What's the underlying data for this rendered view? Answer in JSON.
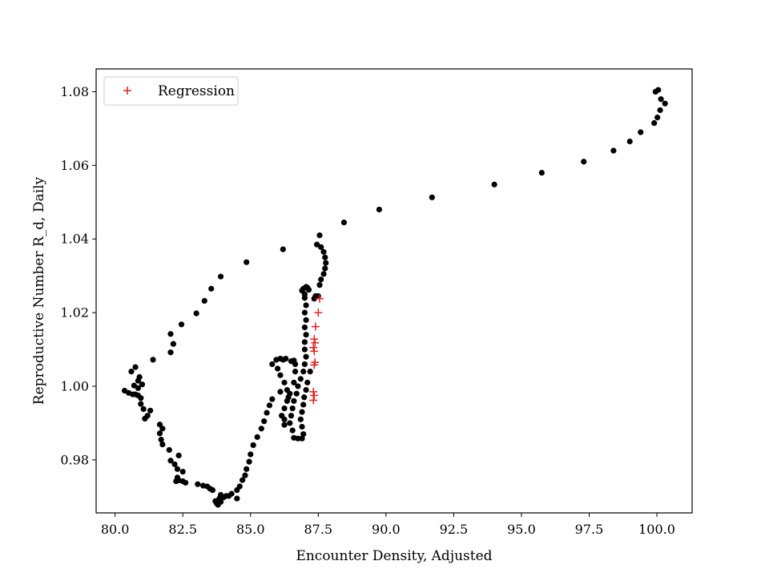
{
  "chart_data": {
    "type": "scatter",
    "xlabel": "Encounter Density, Adjusted",
    "ylabel": "Reproductive Number R_d, Daily",
    "xlim": [
      79.3,
      101.3
    ],
    "ylim": [
      0.9656,
      1.0862
    ],
    "xticks": [
      80.0,
      82.5,
      85.0,
      87.5,
      90.0,
      92.5,
      95.0,
      97.5,
      100.0
    ],
    "xtick_labels": [
      "80.0",
      "82.5",
      "85.0",
      "87.5",
      "90.0",
      "92.5",
      "95.0",
      "97.5",
      "100.0"
    ],
    "yticks": [
      0.98,
      1.0,
      1.02,
      1.04,
      1.06,
      1.08
    ],
    "ytick_labels": [
      "0.98",
      "1.00",
      "1.02",
      "1.04",
      "1.06",
      "1.08"
    ],
    "grid": false,
    "legend_position": "top-left",
    "series": [
      {
        "name": "",
        "marker": "dot",
        "color": "#000000",
        "points": [
          [
            99.95,
            1.08
          ],
          [
            100.05,
            1.0805
          ],
          [
            100.15,
            1.078
          ],
          [
            100.3,
            1.0768
          ],
          [
            100.12,
            1.075
          ],
          [
            100.02,
            1.073
          ],
          [
            99.9,
            1.0715
          ],
          [
            99.4,
            1.069
          ],
          [
            99.0,
            1.0665
          ],
          [
            98.4,
            1.064
          ],
          [
            97.3,
            1.061
          ],
          [
            95.75,
            1.058
          ],
          [
            94.0,
            1.0548
          ],
          [
            91.7,
            1.0513
          ],
          [
            89.75,
            1.048
          ],
          [
            88.45,
            1.0445
          ],
          [
            87.55,
            1.041
          ],
          [
            87.45,
            1.0385
          ],
          [
            87.6,
            1.0378
          ],
          [
            87.7,
            1.0365
          ],
          [
            87.75,
            1.035
          ],
          [
            87.78,
            1.0335
          ],
          [
            87.75,
            1.032
          ],
          [
            87.7,
            1.0305
          ],
          [
            87.6,
            1.029
          ],
          [
            87.55,
            1.0275
          ],
          [
            87.5,
            1.0245
          ],
          [
            87.4,
            1.0245
          ],
          [
            87.35,
            1.0238
          ],
          [
            87.05,
            1.027
          ],
          [
            86.95,
            1.0265
          ],
          [
            86.9,
            1.026
          ],
          [
            87.0,
            1.025
          ],
          [
            87.1,
            1.0268
          ],
          [
            87.15,
            1.0262
          ],
          [
            87.0,
            1.024
          ],
          [
            87.05,
            1.022
          ],
          [
            87.0,
            1.02
          ],
          [
            87.05,
            1.018
          ],
          [
            87.0,
            1.016
          ],
          [
            87.05,
            1.014
          ],
          [
            87.0,
            1.012
          ],
          [
            87.0,
            1.01
          ],
          [
            87.05,
            1.008
          ],
          [
            87.0,
            1.006
          ],
          [
            86.95,
            1.004
          ],
          [
            86.85,
            1.002
          ],
          [
            86.75,
            1.0
          ],
          [
            86.7,
            0.998
          ],
          [
            86.6,
            0.996
          ],
          [
            86.55,
            0.994
          ],
          [
            86.5,
            0.992
          ],
          [
            86.45,
            0.99
          ],
          [
            86.55,
            0.988
          ],
          [
            86.6,
            0.986
          ],
          [
            86.75,
            0.9858
          ],
          [
            86.9,
            0.9858
          ],
          [
            86.95,
            0.987
          ],
          [
            86.9,
            0.989
          ],
          [
            86.85,
            0.991
          ],
          [
            86.9,
            0.993
          ],
          [
            86.95,
            0.995
          ],
          [
            86.98,
            0.997
          ],
          [
            87.05,
            0.999
          ],
          [
            87.1,
            1.001
          ],
          [
            87.2,
            1.004
          ],
          [
            86.6,
            1.007
          ],
          [
            86.5,
            1.0068
          ],
          [
            86.3,
            1.0075
          ],
          [
            86.2,
            1.0072
          ],
          [
            86.1,
            1.0075
          ],
          [
            85.95,
            1.0072
          ],
          [
            85.8,
            1.006
          ],
          [
            86.0,
            1.0048
          ],
          [
            86.1,
            1.003
          ],
          [
            86.25,
            1.001
          ],
          [
            86.35,
            0.999
          ],
          [
            86.4,
            0.997
          ],
          [
            86.65,
            1.006
          ],
          [
            86.65,
            1.004
          ],
          [
            86.6,
            1.001
          ],
          [
            86.45,
            0.998
          ],
          [
            86.35,
            0.996
          ],
          [
            86.25,
            0.994
          ],
          [
            86.15,
            0.992
          ],
          [
            86.25,
            0.991
          ],
          [
            86.25,
            0.9895
          ],
          [
            86.1,
            0.9985
          ],
          [
            85.8,
            0.9965
          ],
          [
            85.7,
            0.9948
          ],
          [
            85.6,
            0.9928
          ],
          [
            85.5,
            0.9905
          ],
          [
            85.4,
            0.9885
          ],
          [
            85.25,
            0.9862
          ],
          [
            85.1,
            0.984
          ],
          [
            85.0,
            0.9815
          ],
          [
            84.95,
            0.9795
          ],
          [
            84.85,
            0.9775
          ],
          [
            84.8,
            0.9758
          ],
          [
            84.7,
            0.9745
          ],
          [
            84.6,
            0.9728
          ],
          [
            84.5,
            0.9718
          ],
          [
            84.3,
            0.9708
          ],
          [
            84.2,
            0.9702
          ],
          [
            84.0,
            0.9698
          ],
          [
            83.9,
            0.9705
          ],
          [
            83.85,
            0.9695
          ],
          [
            83.8,
            0.969
          ],
          [
            83.75,
            0.9682
          ],
          [
            83.9,
            0.9686
          ],
          [
            83.8,
            0.9678
          ],
          [
            83.7,
            0.9688
          ],
          [
            84.5,
            0.9695
          ],
          [
            84.1,
            0.9702
          ],
          [
            83.6,
            0.9718
          ],
          [
            83.5,
            0.9722
          ],
          [
            83.4,
            0.9728
          ],
          [
            83.25,
            0.973
          ],
          [
            83.05,
            0.9734
          ],
          [
            82.6,
            0.9738
          ],
          [
            82.5,
            0.9742
          ],
          [
            82.35,
            0.9744
          ],
          [
            82.3,
            0.9752
          ],
          [
            82.25,
            0.9742
          ],
          [
            82.5,
            0.9768
          ],
          [
            82.3,
            0.9775
          ],
          [
            82.2,
            0.9788
          ],
          [
            82.05,
            0.9798
          ],
          [
            82.35,
            0.9812
          ],
          [
            82.0,
            0.9827
          ],
          [
            81.75,
            0.9842
          ],
          [
            81.7,
            0.9855
          ],
          [
            81.65,
            0.9872
          ],
          [
            81.75,
            0.9885
          ],
          [
            81.65,
            0.9896
          ],
          [
            81.3,
            0.9934
          ],
          [
            81.2,
            0.992
          ],
          [
            81.1,
            0.9912
          ],
          [
            81.05,
            0.9938
          ],
          [
            80.95,
            0.9952
          ],
          [
            80.95,
            0.9968
          ],
          [
            80.85,
            0.9975
          ],
          [
            80.75,
            0.9978
          ],
          [
            80.65,
            0.9978
          ],
          [
            80.5,
            0.9982
          ],
          [
            80.35,
            0.9988
          ],
          [
            80.85,
            0.9995
          ],
          [
            81.0,
            1.0005
          ],
          [
            80.85,
            1.0015
          ],
          [
            80.9,
            1.0025
          ],
          [
            80.7,
            1.0002
          ],
          [
            80.6,
            1.004
          ],
          [
            80.75,
            1.0052
          ],
          [
            81.4,
            1.0072
          ],
          [
            82.05,
            1.0092
          ],
          [
            82.15,
            1.0115
          ],
          [
            82.05,
            1.0142
          ],
          [
            82.45,
            1.0168
          ],
          [
            83.0,
            1.0198
          ],
          [
            83.3,
            1.0232
          ],
          [
            83.55,
            1.0265
          ],
          [
            83.9,
            1.0298
          ],
          [
            84.85,
            1.0337
          ],
          [
            86.2,
            1.0372
          ]
        ]
      },
      {
        "name": "Regression",
        "marker": "plus",
        "color": "#e8231f",
        "points": [
          [
            87.55,
            1.0238
          ],
          [
            87.5,
            1.02
          ],
          [
            87.4,
            1.0162
          ],
          [
            87.35,
            1.0128
          ],
          [
            87.38,
            1.0118
          ],
          [
            87.32,
            1.0105
          ],
          [
            87.35,
            1.0095
          ],
          [
            87.38,
            1.0065
          ],
          [
            87.35,
            1.0058
          ],
          [
            87.32,
            0.9985
          ],
          [
            87.35,
            0.9975
          ],
          [
            87.32,
            0.9962
          ]
        ]
      }
    ]
  }
}
